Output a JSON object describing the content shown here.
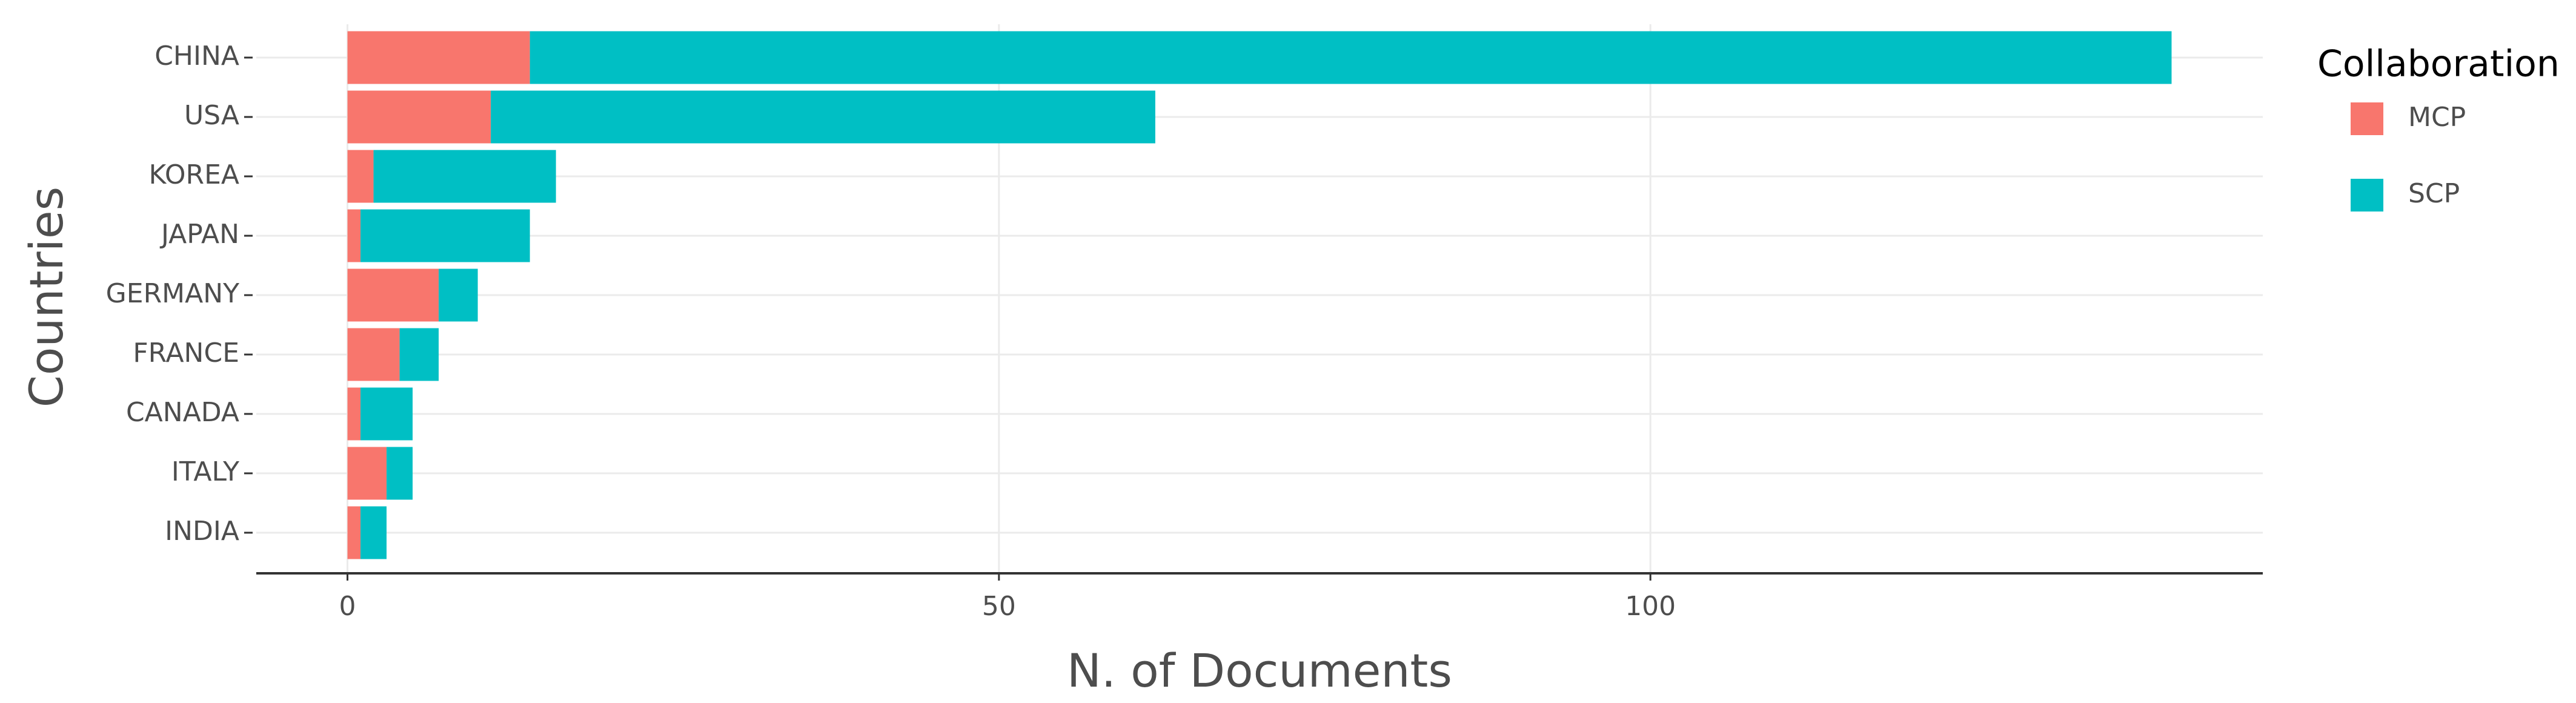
{
  "chart_data": {
    "type": "stacked-barh",
    "x_label": "N. of Documents",
    "y_label": "Countries",
    "legend_title": "Collaboration",
    "legend_position": "right",
    "categories": [
      "CHINA",
      "USA",
      "KOREA",
      "JAPAN",
      "GERMANY",
      "FRANCE",
      "CANADA",
      "ITALY",
      "INDIA"
    ],
    "series": [
      {
        "name": "MCP",
        "color": "#f8766d",
        "values": [
          14,
          11,
          2,
          1,
          7,
          4,
          1,
          3,
          1
        ]
      },
      {
        "name": "SCP",
        "color": "#00bfc4",
        "values": [
          126,
          51,
          14,
          13,
          3,
          3,
          4,
          2,
          2
        ]
      }
    ],
    "xlim": [
      -7,
      147
    ],
    "xticks": [
      0,
      50,
      100
    ],
    "grid": true
  }
}
